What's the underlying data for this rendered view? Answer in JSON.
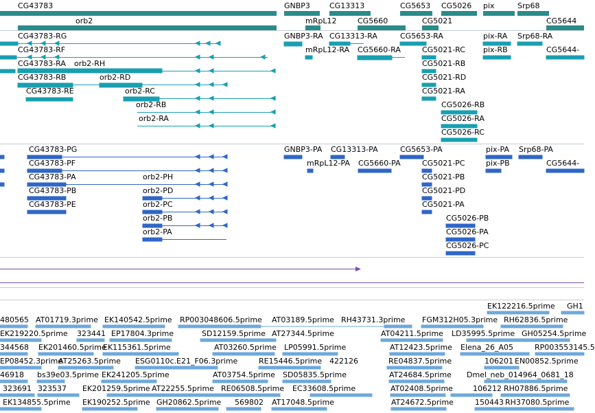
{
  "colors": {
    "gene": "#2a8b8b",
    "transcript": "#189fb1",
    "protein": "#2f66c8",
    "est": "#6fa8dc",
    "purple": "#7a4ea8",
    "separator": "#c4cdd6"
  },
  "genes": [
    {
      "name": "CG43783",
      "label": "CG43783"
    },
    {
      "name": "orb2",
      "label": "orb2"
    },
    {
      "name": "GNBP3",
      "label": "GNBP3"
    },
    {
      "name": "mRpL12",
      "label": "mRpL12"
    },
    {
      "name": "CG13313",
      "label": "CG13313"
    },
    {
      "name": "CG5660",
      "label": "CG5660"
    },
    {
      "name": "CG5653",
      "label": "CG5653"
    },
    {
      "name": "CG5021",
      "label": "CG5021"
    },
    {
      "name": "CG5026",
      "label": "CG5026"
    },
    {
      "name": "pix",
      "label": "pix"
    },
    {
      "name": "Srp68",
      "label": "Srp68"
    },
    {
      "name": "CG5644",
      "label": "CG5644"
    }
  ],
  "transcripts": [
    "CG43783-RG",
    "CG43783-RF",
    "CG43783-RA",
    "orb2-RH",
    "CG43783-RB",
    "orb2-RD",
    "CG43783-RE",
    "orb2-RC",
    "orb2-RB",
    "orb2-RA",
    "GNBP3-RA",
    "CG13313-RA",
    "mRpL12-RA",
    "CG5660-RA",
    "CG5653-RA",
    "CG5021-RC",
    "CG5021-RB",
    "CG5021-RD",
    "CG5021-RA",
    "CG5026-RB",
    "CG5026-RA",
    "CG5026-RC",
    "pix-RA",
    "pix-RB",
    "Srp68-RA",
    "CG5644-"
  ],
  "proteins": [
    "CG43783-PG",
    "CG43783-PF",
    "CG43783-PA",
    "CG43783-PB",
    "CG43783-PE",
    "orb2-PH",
    "orb2-PD",
    "orb2-PC",
    "orb2-PB",
    "orb2-PA",
    "GNBP3-PA",
    "CG13313-PA",
    "mRpL12-PA",
    "CG5660-PA",
    "CG5653-PA",
    "CG5021-PC",
    "CG5021-PB",
    "CG5021-PD",
    "CG5021-PA",
    "CG5026-PB",
    "CG5026-PA",
    "CG5026-PC",
    "pix-PA",
    "pix-PB",
    "Srp68-PA",
    "CG5644-"
  ],
  "ests": [
    "EK122216.5prime",
    "GH1",
    "480565",
    "AT01719.3prime",
    "EK140542.5prime",
    "RP003048606.5prime",
    "AT03189.5prime",
    "RH43731.3prime",
    "FGM312H05.3prime",
    "RH62836.5prime",
    "EK219220.5prime",
    "323441",
    "EP17804.3prime",
    "SD12159.5prime",
    "AT27344.5prime",
    "AT04211.5prime",
    "LD35995.5prime",
    "GH05254.5prime",
    "344568",
    "EK201460.5prime",
    "EK115361.5prime",
    "AT03260.5prime",
    "LP05991.5prime",
    "AT12423.5prime",
    "Elena_26_A05",
    "RP003553145.5",
    "EP08452.3prime",
    "AT25263.5prime",
    "ESG0110c.E21_F06.3prime",
    "RE15446.5prime",
    "422126",
    "RE04837.5prime",
    "106201",
    "EN00852.5prime",
    "46918",
    "bs39e03.5prime",
    "EK241205.5prime",
    "AT03754.5prime",
    "SD05835.5prime",
    "AT24684.5prime",
    "Dmel_neb_014964_0681_18",
    "323691",
    "323537",
    "EK201259.5prime",
    "AT22255.5prime",
    "RE06508.5prime",
    "EC33608.5prime",
    "AT02408.5prime",
    "106212",
    "RH07886.5prime",
    "EK134855.5prime",
    "EK190252.5prime",
    "GH20862.5prime",
    "569802",
    "AT17048.5prime",
    "AT24672.5prime",
    "150443",
    "RH37080.5prime"
  ]
}
